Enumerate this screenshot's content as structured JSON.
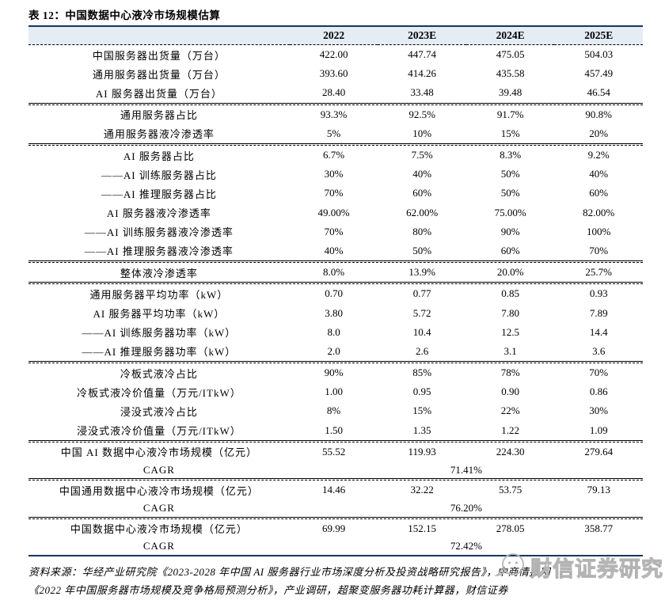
{
  "title": "表 12：中国数据中心液冷市场规模估算",
  "table": {
    "header": [
      "",
      "2022",
      "2023E",
      "2024E",
      "2025E"
    ],
    "sections": [
      {
        "rows": [
          {
            "label": "中国服务器出货量（万台）",
            "values": [
              "422.00",
              "447.74",
              "475.05",
              "504.03"
            ]
          },
          {
            "label": "通用服务器出货量（万台）",
            "values": [
              "393.60",
              "414.26",
              "435.58",
              "457.49"
            ]
          },
          {
            "label": "AI 服务器出货量（万台）",
            "values": [
              "28.40",
              "33.48",
              "39.48",
              "46.54"
            ]
          }
        ]
      },
      {
        "rows": [
          {
            "label": "通用服务器占比",
            "values": [
              "93.3%",
              "92.5%",
              "91.7%",
              "90.8%"
            ]
          },
          {
            "label": "通用服务器液冷渗透率",
            "values": [
              "5%",
              "10%",
              "15%",
              "20%"
            ]
          }
        ]
      },
      {
        "rows": [
          {
            "label": "AI 服务器占比",
            "values": [
              "6.7%",
              "7.5%",
              "8.3%",
              "9.2%"
            ]
          },
          {
            "label": "——AI 训练服务器占比",
            "values": [
              "30%",
              "40%",
              "50%",
              "40%"
            ]
          },
          {
            "label": "——AI 推理服务器占比",
            "values": [
              "70%",
              "60%",
              "50%",
              "60%"
            ]
          },
          {
            "label": "AI 服务器液冷渗透率",
            "values": [
              "49.00%",
              "62.00%",
              "75.00%",
              "82.00%"
            ]
          },
          {
            "label": "——AI 训练服务器液冷渗透率",
            "values": [
              "70%",
              "80%",
              "90%",
              "100%"
            ]
          },
          {
            "label": "——AI 推理服务器液冷渗透率",
            "values": [
              "40%",
              "50%",
              "60%",
              "70%"
            ]
          }
        ]
      },
      {
        "rows": [
          {
            "label": "整体液冷渗透率",
            "values": [
              "8.0%",
              "13.9%",
              "20.0%",
              "25.7%"
            ]
          }
        ]
      },
      {
        "rows": [
          {
            "label": "通用服务器平均功率（kW）",
            "values": [
              "0.70",
              "0.77",
              "0.85",
              "0.93"
            ]
          },
          {
            "label": "AI 服务器平均功率（kW）",
            "values": [
              "3.80",
              "5.72",
              "7.80",
              "7.89"
            ]
          },
          {
            "label": "——AI 训练服务器功率（kW）",
            "values": [
              "8.0",
              "10.4",
              "12.5",
              "14.4"
            ]
          },
          {
            "label": "——AI 推理服务器功率（kW）",
            "values": [
              "2.0",
              "2.6",
              "3.1",
              "3.6"
            ]
          }
        ]
      },
      {
        "rows": [
          {
            "label": "冷板式液冷占比",
            "values": [
              "90%",
              "85%",
              "78%",
              "70%"
            ]
          },
          {
            "label": "冷板式液冷价值量（万元/ITkW）",
            "values": [
              "1.00",
              "0.95",
              "0.90",
              "0.86"
            ]
          },
          {
            "label": "浸没式液冷占比",
            "values": [
              "8%",
              "15%",
              "22%",
              "30%"
            ]
          },
          {
            "label": "浸没式液冷价值量（万元/ITkW）",
            "values": [
              "1.50",
              "1.35",
              "1.22",
              "1.09"
            ]
          }
        ]
      },
      {
        "rows": [
          {
            "label": "中国 AI 数据中心液冷市场规模（亿元）",
            "values": [
              "55.52",
              "119.93",
              "224.30",
              "279.64"
            ]
          },
          {
            "label": "CAGR",
            "merged": "71.41%"
          }
        ]
      },
      {
        "rows": [
          {
            "label": "中国通用数据中心液冷市场规模（亿元）",
            "values": [
              "14.46",
              "32.22",
              "53.75",
              "79.13"
            ]
          },
          {
            "label": "CAGR",
            "merged": "76.20%"
          }
        ]
      },
      {
        "rows": [
          {
            "label": "中国数据中心液冷市场规模（亿元）",
            "values": [
              "69.99",
              "152.15",
              "278.05",
              "358.77"
            ]
          },
          {
            "label": "CAGR",
            "merged": "72.42%"
          }
        ]
      }
    ]
  },
  "footnote": {
    "line1": "资料来源：华经产业研究院《2023-2028 年中国 AI 服务器行业市场深度分析及投资战略研究报告》，中商情报网",
    "line2": "《2022 年中国服务器市场规模及竞争格局预测分析》，产业调研，超聚变服务器功耗计算器，财信证券"
  },
  "watermark": {
    "text": "财信证券研究",
    "icon": "smiley-chat-bubble-icon"
  },
  "colors": {
    "table_border": "#17365d",
    "header_bg": "#e4ecf4",
    "watermark_gray": "#b3b3b3"
  }
}
